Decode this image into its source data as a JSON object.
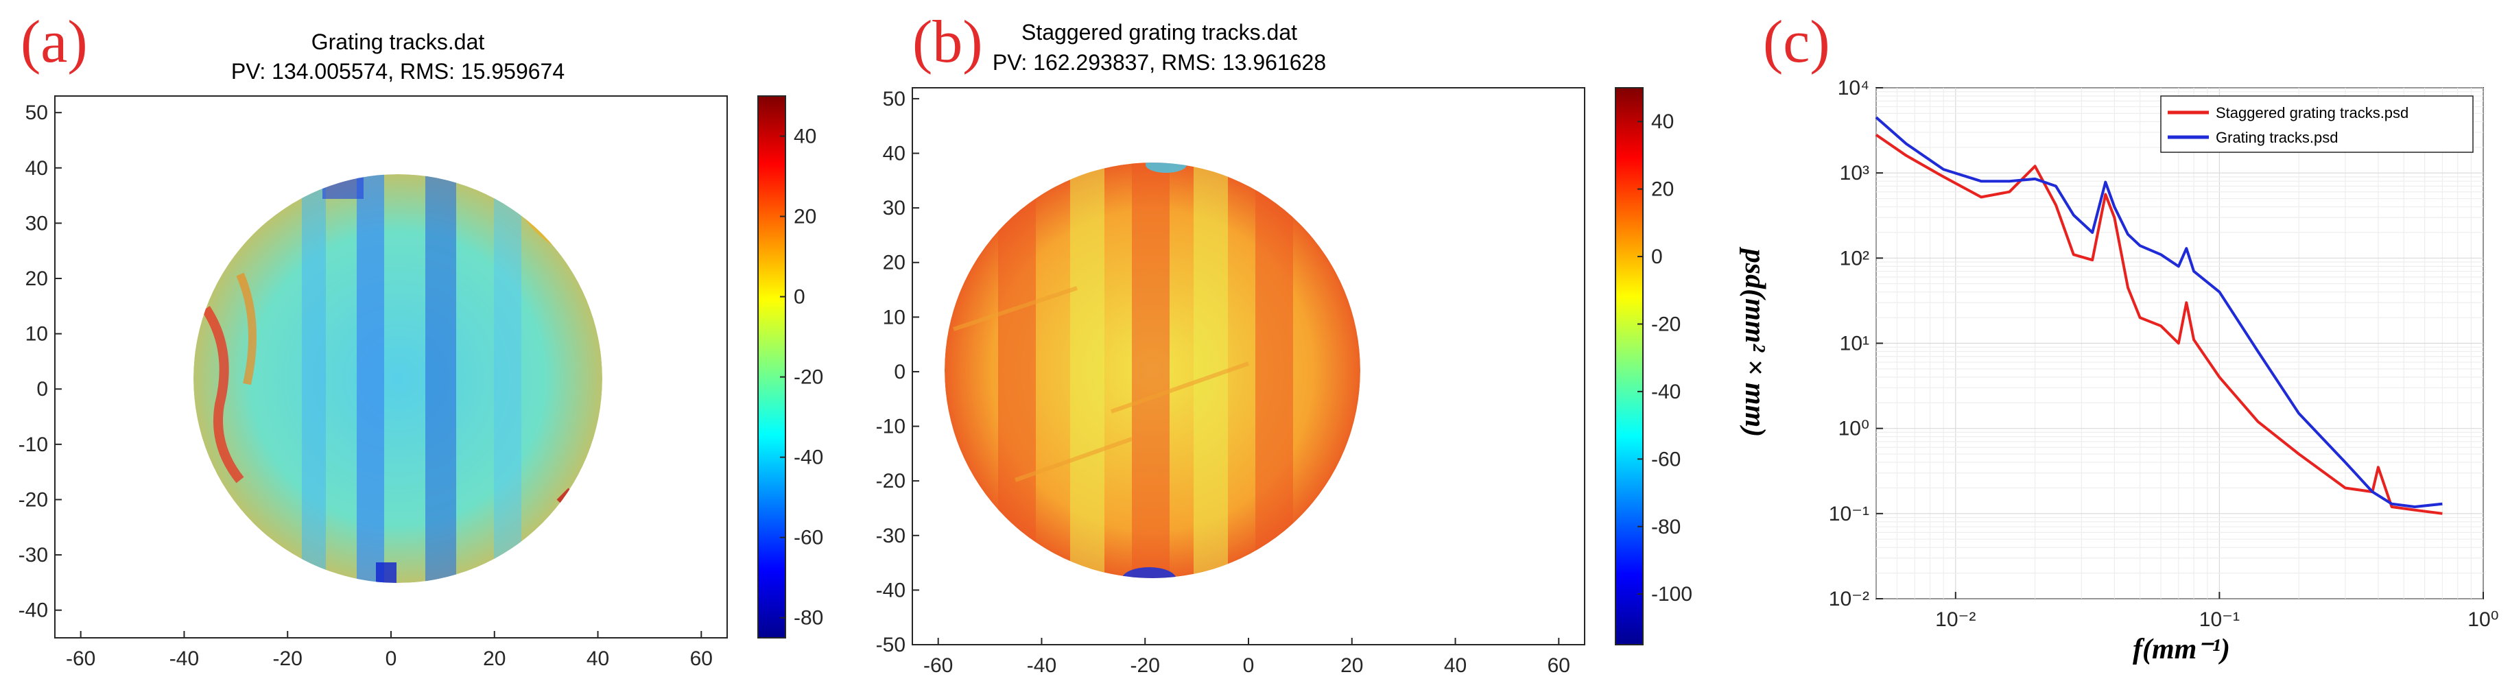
{
  "panels": {
    "a": {
      "label": "(a)",
      "title": "Grating tracks.dat",
      "subtitle": "PV: 134.005574, RMS: 15.959674",
      "xticks": [
        "-60",
        "-40",
        "-20",
        "0",
        "20",
        "40",
        "60"
      ],
      "yticks": [
        "50",
        "40",
        "30",
        "20",
        "10",
        "0",
        "-10",
        "-20",
        "-30",
        "-40"
      ],
      "cbar_ticks": [
        "40",
        "20",
        "0",
        "-20",
        "-40",
        "-60",
        "-80"
      ]
    },
    "b": {
      "label": "(b)",
      "title": "Staggered grating tracks.dat",
      "subtitle": "PV: 162.293837, RMS: 13.961628",
      "xticks": [
        "-60",
        "-40",
        "-20",
        "0",
        "20",
        "40",
        "60"
      ],
      "yticks": [
        "50",
        "40",
        "30",
        "20",
        "10",
        "0",
        "-10",
        "-20",
        "-30",
        "-40",
        "-50"
      ],
      "cbar_ticks": [
        "40",
        "20",
        "0",
        "-20",
        "-40",
        "-60",
        "-80",
        "-100"
      ]
    },
    "c": {
      "label": "(c)",
      "xlabel": "f(mm⁻¹)",
      "ylabel": "psd(mm² × mm)",
      "xticks": [
        "10⁻²",
        "10⁻¹",
        "10⁰"
      ],
      "yticks": [
        "10⁴",
        "10³",
        "10²",
        "10¹",
        "10⁰",
        "10⁻¹",
        "10⁻²"
      ],
      "legend": [
        "Staggered grating tracks.psd",
        "Grating tracks.psd"
      ]
    }
  },
  "colors": {
    "staggered": "#e8231f",
    "grating": "#1f2bd6",
    "label": "#e32b2b"
  },
  "chart_data": [
    {
      "type": "heatmap",
      "title": "Grating tracks.dat",
      "subtitle": "PV: 134.005574, RMS: 15.959674",
      "xlim": [
        -65,
        65
      ],
      "ylim": [
        -45,
        53
      ],
      "aperture_radius": 40,
      "colorbar_range": [
        -85,
        50
      ],
      "colormap": "jet",
      "pv": 134.005574,
      "rms": 15.959674
    },
    {
      "type": "heatmap",
      "title": "Staggered grating tracks.dat",
      "subtitle": "PV: 162.293837, RMS: 13.961628",
      "xlim": [
        -65,
        65
      ],
      "ylim": [
        -50,
        52
      ],
      "aperture_radius": 40,
      "colorbar_range": [
        -115,
        50
      ],
      "colormap": "jet",
      "pv": 162.293837,
      "rms": 13.961628
    },
    {
      "type": "line",
      "xscale": "log",
      "yscale": "log",
      "xlim": [
        0.005,
        1
      ],
      "ylim": [
        0.01,
        10000
      ],
      "grid": true,
      "legend_position": "top-right",
      "series": [
        {
          "name": "Staggered grating tracks.psd",
          "color": "#e8231f",
          "x": [
            0.005,
            0.0065,
            0.009,
            0.0125,
            0.016,
            0.02,
            0.024,
            0.028,
            0.033,
            0.037,
            0.04,
            0.045,
            0.05,
            0.06,
            0.07,
            0.075,
            0.08,
            0.1,
            0.14,
            0.2,
            0.3,
            0.38,
            0.4,
            0.45,
            0.55,
            0.7
          ],
          "y": [
            2800,
            1600,
            900,
            520,
            600,
            1200,
            420,
            110,
            95,
            560,
            300,
            45,
            20,
            16,
            10,
            30,
            11,
            4,
            1.2,
            0.5,
            0.2,
            0.18,
            0.35,
            0.12,
            0.11,
            0.1
          ]
        },
        {
          "name": "Grating tracks.psd",
          "color": "#1f2bd6",
          "x": [
            0.005,
            0.0065,
            0.009,
            0.0125,
            0.016,
            0.02,
            0.024,
            0.028,
            0.033,
            0.037,
            0.04,
            0.045,
            0.05,
            0.06,
            0.07,
            0.075,
            0.08,
            0.1,
            0.14,
            0.2,
            0.3,
            0.38,
            0.45,
            0.55,
            0.7
          ],
          "y": [
            4500,
            2200,
            1100,
            800,
            800,
            850,
            700,
            320,
            200,
            780,
            400,
            190,
            140,
            110,
            80,
            130,
            70,
            40,
            8,
            1.5,
            0.4,
            0.18,
            0.13,
            0.12,
            0.13
          ]
        }
      ]
    }
  ]
}
